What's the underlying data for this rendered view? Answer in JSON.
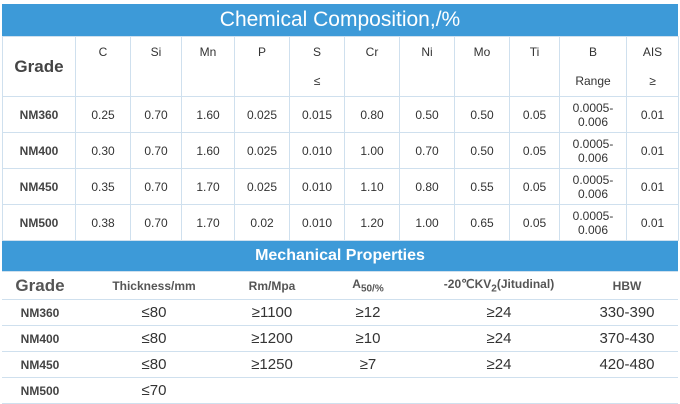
{
  "chemical": {
    "title": "Chemical Composition,/%",
    "grade_header": "Grade",
    "columns": [
      "C",
      "Si",
      "Mn",
      "P",
      "S",
      "Cr",
      "Ni",
      "Mo",
      "Ti",
      "B",
      "AIS"
    ],
    "subheaders": {
      "S": "≤",
      "B": "Range",
      "AIS": "≥"
    },
    "rows": [
      [
        "NM360",
        "0.25",
        "0.70",
        "1.60",
        "0.025",
        "0.015",
        "0.80",
        "0.50",
        "0.50",
        "0.05",
        "0.0005-0.006",
        "0.01"
      ],
      [
        "NM400",
        "0.30",
        "0.70",
        "1.60",
        "0.025",
        "0.010",
        "1.00",
        "0.70",
        "0.50",
        "0.05",
        "0.0005-0.006",
        "0.01"
      ],
      [
        "NM450",
        "0.35",
        "0.70",
        "1.70",
        "0.025",
        "0.010",
        "1.10",
        "0.80",
        "0.55",
        "0.05",
        "0.0005-0.006",
        "0.01"
      ],
      [
        "NM500",
        "0.38",
        "0.70",
        "1.70",
        "0.02",
        "0.010",
        "1.20",
        "1.00",
        "0.65",
        "0.05",
        "0.0005-0.006",
        "0.01"
      ]
    ]
  },
  "mechanical": {
    "title": "Mechanical Properties",
    "columns": [
      "Grade",
      "Thickness/mm",
      "Rm/Mpa",
      {
        "main": "A",
        "sub": "50/%"
      },
      {
        "main": "-20℃KV",
        "sub": "2",
        "after": "(Jitudinal)"
      },
      "HBW"
    ],
    "rows": [
      [
        "NM360",
        "≤80",
        "≥1100",
        "≥12",
        "≥24",
        "330-390"
      ],
      [
        "NM400",
        "≤80",
        "≥1200",
        "≥10",
        "≥24",
        "370-430"
      ],
      [
        "NM450",
        "≤80",
        "≥1250",
        "≥7",
        "≥24",
        "420-480"
      ],
      [
        "NM500",
        "≤70"
      ]
    ]
  }
}
